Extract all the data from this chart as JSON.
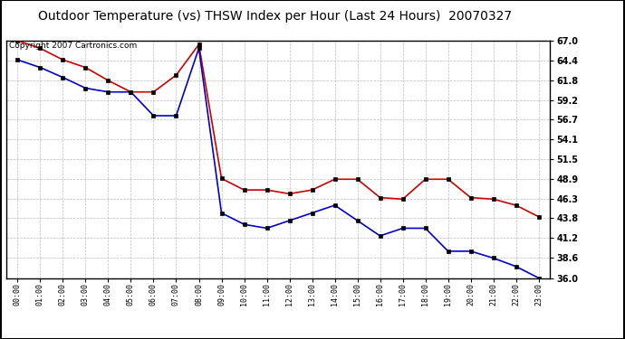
{
  "title": "Outdoor Temperature (vs) THSW Index per Hour (Last 24 Hours)  20070327",
  "copyright": "Copyright 2007 Cartronics.com",
  "hours": [
    "00:00",
    "01:00",
    "02:00",
    "03:00",
    "04:00",
    "05:00",
    "06:00",
    "07:00",
    "08:00",
    "09:00",
    "10:00",
    "11:00",
    "12:00",
    "13:00",
    "14:00",
    "15:00",
    "16:00",
    "17:00",
    "18:00",
    "19:00",
    "20:00",
    "21:00",
    "22:00",
    "23:00"
  ],
  "temp_blue": [
    64.5,
    63.5,
    62.2,
    60.8,
    60.3,
    60.3,
    57.2,
    57.2,
    66.0,
    44.5,
    43.0,
    42.5,
    43.5,
    44.5,
    45.5,
    43.5,
    41.5,
    42.5,
    42.5,
    39.5,
    39.5,
    38.6,
    37.5,
    36.0
  ],
  "thsw_red": [
    67.0,
    66.0,
    64.5,
    63.5,
    61.8,
    60.3,
    60.3,
    62.5,
    66.5,
    49.0,
    47.5,
    47.5,
    47.0,
    47.5,
    48.9,
    48.9,
    46.5,
    46.3,
    48.9,
    48.9,
    46.5,
    46.3,
    45.5,
    44.0
  ],
  "ylim": [
    36.0,
    67.0
  ],
  "yticks": [
    36.0,
    38.6,
    41.2,
    43.8,
    46.3,
    48.9,
    51.5,
    54.1,
    56.7,
    59.2,
    61.8,
    64.4,
    67.0
  ],
  "blue_color": "#0000cc",
  "red_color": "#cc0000",
  "bg_color": "#ffffff",
  "grid_color": "#bbbbbb",
  "title_fontsize": 10,
  "copyright_fontsize": 6.5,
  "border_color": "#000000"
}
